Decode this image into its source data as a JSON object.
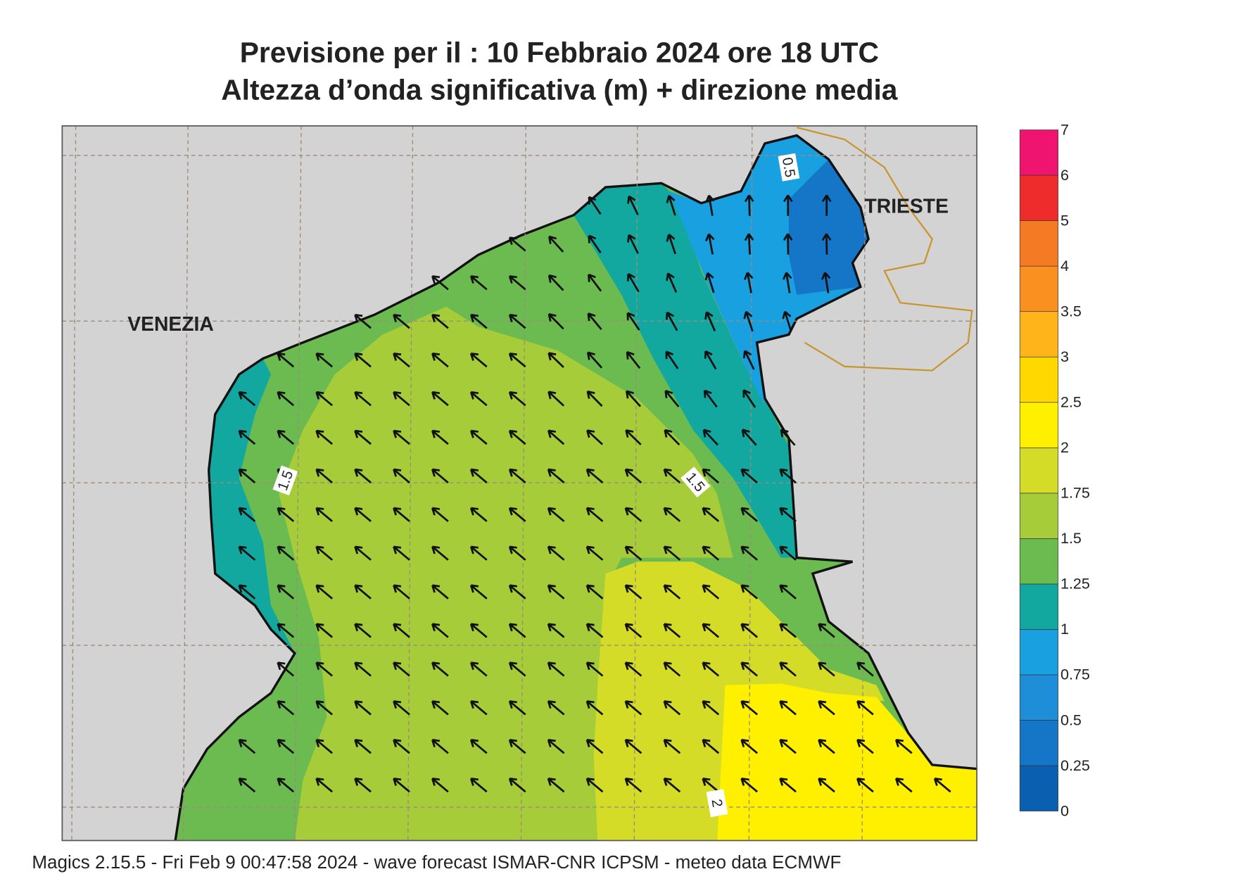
{
  "title": {
    "line1": "Previsione per il  :  10  Febbraio 2024   ore 18 UTC",
    "line2": "Altezza d’onda significativa (m) + direzione media"
  },
  "places": [
    "VENEZIA",
    "TRIESTE"
  ],
  "contour_labels": [
    "0.5",
    "1.5",
    "1.5",
    "2"
  ],
  "colorbar": {
    "levels": [
      0,
      0.25,
      0.5,
      0.75,
      1,
      1.25,
      1.5,
      1.75,
      2,
      2.5,
      3,
      3.5,
      4,
      5,
      6,
      7
    ],
    "colors": [
      "#0a5fb0",
      "#1576c8",
      "#1e8ed8",
      "#18a0e0",
      "#12a8a0",
      "#6cbb50",
      "#a6cc3a",
      "#d4dc28",
      "#fff000",
      "#ffd800",
      "#ffb41a",
      "#f99020",
      "#f47a24",
      "#ee2c2c",
      "#ee1470"
    ]
  },
  "footer": "Magics 2.15.5 - Fri Feb  9 00:47:58 2024 - wave forecast  ISMAR-CNR  ICPSM - meteo data   ECMWF"
}
